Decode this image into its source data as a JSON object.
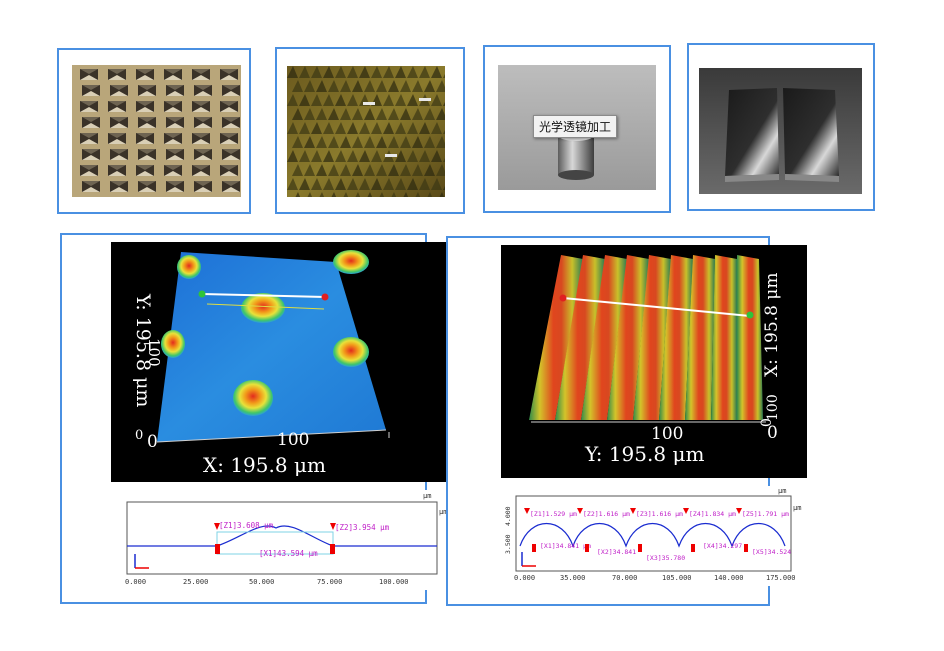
{
  "photos": [
    {
      "name": "pyramid-array-photo"
    },
    {
      "name": "microstructure-photo",
      "marker_count": 3
    },
    {
      "name": "optical-lens-photo",
      "caption": "光学透镜加工"
    },
    {
      "name": "metal-blocks-photo"
    }
  ],
  "left_panel": {
    "render": {
      "y_axis_label": "Y: 195.8 μm",
      "y_tick": "100",
      "x_axis_label": "X: 195.8 μm",
      "x_tick_zero": "0",
      "x_tick_100": "100",
      "origin_tick": "0"
    },
    "profile": {
      "unit_top": "μm",
      "unit_right": "μm",
      "z1": "[Z1]3.608  μm",
      "z2": "[Z2]3.954  μm",
      "x1": "[X1]43.594  μm",
      "x_ticks": [
        "0.000",
        "25.000",
        "50.000",
        "75.000",
        "100.000"
      ]
    }
  },
  "right_panel": {
    "render": {
      "y_axis_label": "Y: 195.8 μm",
      "x_tick_100": "100",
      "x_tick_zero": "0",
      "side_label": "X: 195.8 μm",
      "side_tick": "100",
      "side_tick_zero": "0"
    },
    "profile": {
      "unit_top": "μm",
      "unit_right": "μm",
      "y_ticks": [
        "4.000",
        "3.500"
      ],
      "z_labels": [
        "[Z1]1.529  μm",
        "[Z2]1.616  μm",
        "[Z3]1.616  μm",
        "[Z4]1.834  μm",
        "[Z5]1.791  μm"
      ],
      "x_labels": [
        "[X1]34.841  μm",
        "[X2]34.841",
        "[X3]35.780",
        "[X4]34.297",
        "[X5]34.524"
      ],
      "x_ticks": [
        "0.000",
        "35.000",
        "70.000",
        "105.000",
        "140.000",
        "175.000"
      ]
    }
  }
}
